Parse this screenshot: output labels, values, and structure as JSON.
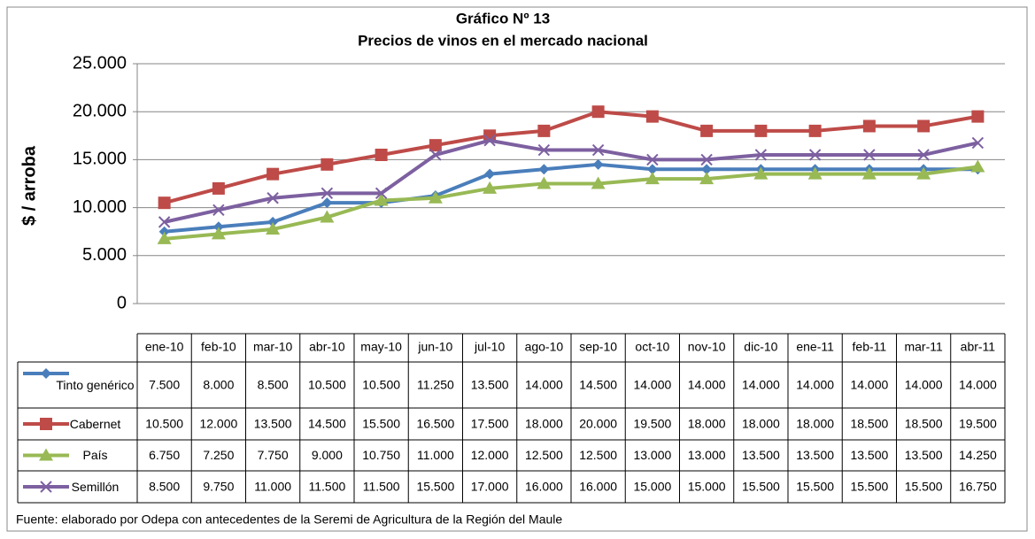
{
  "chart_data": {
    "type": "line",
    "title": "Gráfico Nº 13",
    "subtitle": "Precios de vinos en el mercado nacional",
    "y_label": "$ / arroba",
    "source": "Fuente: elaborado por Odepa con antecedentes de la Seremi de Agricultura de la Región del Maule",
    "categories": [
      "ene-10",
      "feb-10",
      "mar-10",
      "abr-10",
      "may-10",
      "jun-10",
      "jul-10",
      "ago-10",
      "sep-10",
      "oct-10",
      "nov-10",
      "dic-10",
      "ene-11",
      "feb-11",
      "mar-11",
      "abr-11"
    ],
    "ylim": [
      0,
      25000
    ],
    "yticks": [
      0,
      {
        "value": 5000,
        "label": "5.000"
      },
      {
        "value": 10000,
        "label": "10.000"
      },
      {
        "value": 15000,
        "label": "15.000"
      },
      {
        "value": 20000,
        "label": "20.000"
      },
      {
        "value": 25000,
        "label": "25.000"
      }
    ],
    "grid": true,
    "series": [
      {
        "name": "Tinto genérico",
        "color": "#4a7ebb",
        "marker": "diamond",
        "values": [
          7500,
          8000,
          8500,
          10500,
          10500,
          11250,
          13500,
          14000,
          14500,
          14000,
          14000,
          14000,
          14000,
          14000,
          14000,
          14000
        ],
        "value_labels": [
          "7.500",
          "8.000",
          "8.500",
          "10.500",
          "10.500",
          "11.250",
          "13.500",
          "14.000",
          "14.500",
          "14.000",
          "14.000",
          "14.000",
          "14.000",
          "14.000",
          "14.000",
          "14.000"
        ]
      },
      {
        "name": "Cabernet",
        "color": "#be4b48",
        "marker": "square",
        "values": [
          10500,
          12000,
          13500,
          14500,
          15500,
          16500,
          17500,
          18000,
          20000,
          19500,
          18000,
          18000,
          18000,
          18500,
          18500,
          19500
        ],
        "value_labels": [
          "10.500",
          "12.000",
          "13.500",
          "14.500",
          "15.500",
          "16.500",
          "17.500",
          "18.000",
          "20.000",
          "19.500",
          "18.000",
          "18.000",
          "18.000",
          "18.500",
          "18.500",
          "19.500"
        ]
      },
      {
        "name": "País",
        "color": "#98b954",
        "marker": "triangle",
        "values": [
          6750,
          7250,
          7750,
          9000,
          10750,
          11000,
          12000,
          12500,
          12500,
          13000,
          13000,
          13500,
          13500,
          13500,
          13500,
          14250
        ],
        "value_labels": [
          "6.750",
          "7.250",
          "7.750",
          "9.000",
          "10.750",
          "11.000",
          "12.000",
          "12.500",
          "12.500",
          "13.000",
          "13.000",
          "13.500",
          "13.500",
          "13.500",
          "13.500",
          "14.250"
        ]
      },
      {
        "name": "Semillón",
        "color": "#7d60a0",
        "marker": "x",
        "values": [
          8500,
          9750,
          11000,
          11500,
          11500,
          15500,
          17000,
          16000,
          16000,
          15000,
          15000,
          15500,
          15500,
          15500,
          15500,
          16750
        ],
        "value_labels": [
          "8.500",
          "9.750",
          "11.000",
          "11.500",
          "11.500",
          "15.500",
          "17.000",
          "16.000",
          "16.000",
          "15.000",
          "15.000",
          "15.500",
          "15.500",
          "15.500",
          "15.500",
          "16.750"
        ]
      }
    ]
  }
}
